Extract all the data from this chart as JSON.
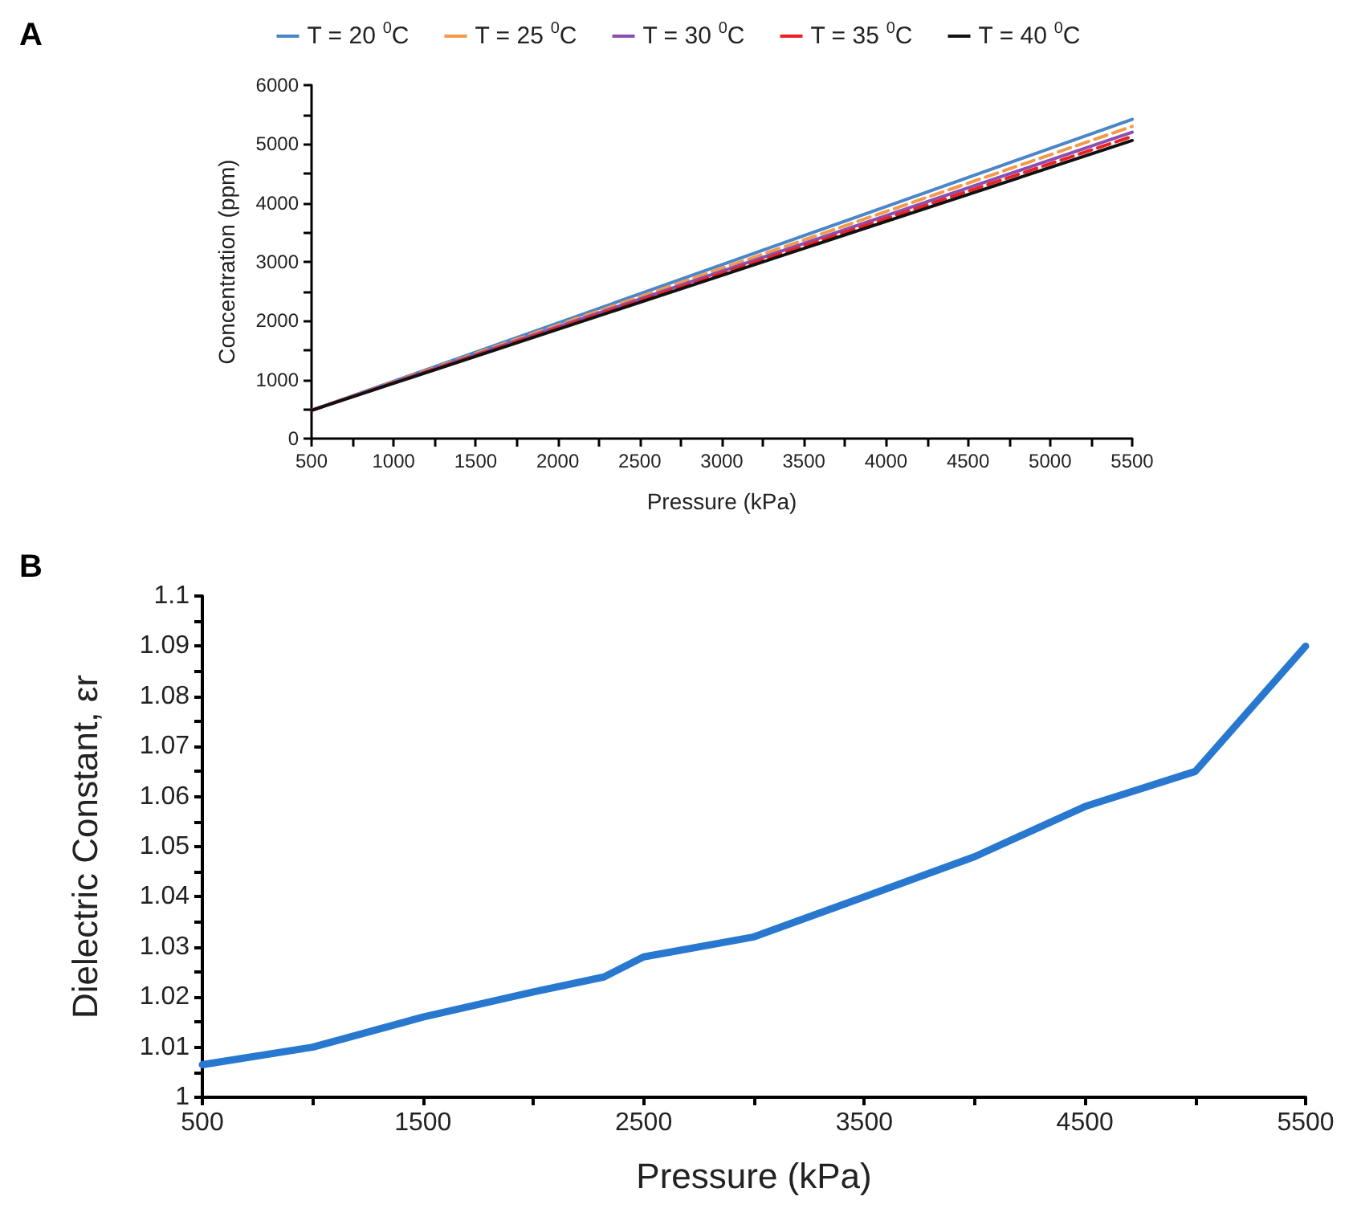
{
  "chart_data": [
    {
      "type": "line",
      "annotations": [
        "A"
      ],
      "xlabel": "Pressure (kPa)",
      "ylabel": "Concentration (ppm)",
      "xlim": [
        500,
        5500
      ],
      "ylim": [
        0,
        6000
      ],
      "xticks": [
        500,
        {
          "value": 750,
          "label": null
        },
        1000,
        {
          "value": 1250,
          "label": null
        },
        1500,
        {
          "value": 1750,
          "label": null
        },
        2000,
        {
          "value": 2250,
          "label": null
        },
        2500,
        {
          "value": 2750,
          "label": null
        },
        3000,
        {
          "value": 3250,
          "label": null
        },
        3500,
        {
          "value": 3750,
          "label": null
        },
        4000,
        {
          "value": 4250,
          "label": null
        },
        4500,
        {
          "value": 4750,
          "label": null
        },
        5000,
        {
          "value": 5250,
          "label": null
        },
        5500
      ],
      "yticks": [
        0,
        {
          "value": 500,
          "label": null
        },
        1000,
        {
          "value": 1500,
          "label": null
        },
        2000,
        {
          "value": 2500,
          "label": null
        },
        3000,
        {
          "value": 3500,
          "label": null
        },
        4000,
        {
          "value": 4500,
          "label": null
        },
        5000,
        {
          "value": 5500,
          "label": null
        },
        6000
      ],
      "x": [
        500,
        5500
      ],
      "grid": false,
      "legend": "top",
      "marker": "none",
      "series": [
        {
          "name": "T = 20 $^{0}$C",
          "color": "#4a86c8",
          "values": [
            480,
            5420
          ],
          "line_style": "solid"
        },
        {
          "name": "T = 25 $^{0}$C",
          "color": "#f39a4a",
          "values": [
            480,
            5300
          ],
          "line_style": "dashed"
        },
        {
          "name": "T = 30 $^{0}$C",
          "color": "#8a4fb0",
          "values": [
            480,
            5200
          ],
          "line_style": "solid"
        },
        {
          "name": "T = 35 $^{0}$C",
          "color": "#ee2020",
          "values": [
            480,
            5130
          ],
          "line_style": "dashed"
        },
        {
          "name": "T = 40 $^{0}$C",
          "color": "#111111",
          "values": [
            480,
            5060
          ],
          "line_style": "solid"
        }
      ]
    },
    {
      "type": "line",
      "annotations": [
        "B"
      ],
      "xlabel": "Pressure (kPa)",
      "ylabel": "Dielectric Constant, εr",
      "xlim": [
        500,
        5500
      ],
      "ylim": [
        1,
        1.1
      ],
      "xticks": [
        500,
        {
          "value": 1000,
          "label": null
        },
        1500,
        {
          "value": 2000,
          "label": null
        },
        2500,
        {
          "value": 3000,
          "label": null
        },
        3500,
        {
          "value": 4000,
          "label": null
        },
        4500,
        {
          "value": 5000,
          "label": null
        },
        5500
      ],
      "yticks": [
        1,
        {
          "value": 1.005,
          "label": null
        },
        1.01,
        {
          "value": 1.015,
          "label": null
        },
        1.02,
        {
          "value": 1.025,
          "label": null
        },
        1.03,
        {
          "value": 1.035,
          "label": null
        },
        1.04,
        {
          "value": 1.045,
          "label": null
        },
        1.05,
        {
          "value": 1.055,
          "label": null
        },
        1.06,
        {
          "value": 1.065,
          "label": null
        },
        1.07,
        {
          "value": 1.075,
          "label": null
        },
        1.08,
        {
          "value": 1.085,
          "label": null
        },
        1.09,
        {
          "value": 1.095,
          "label": null
        },
        1.1
      ],
      "x": [
        500,
        1000,
        1500,
        2000,
        2320,
        2500,
        3000,
        3500,
        4000,
        4500,
        5000,
        5500
      ],
      "grid": false,
      "marker": "none",
      "series": [
        {
          "color": "#2878d0",
          "values": [
            1.0065,
            1.01,
            1.016,
            1.021,
            1.024,
            1.028,
            1.032,
            1.04,
            1.048,
            1.058,
            1.065,
            1.09
          ],
          "line_style": "solid"
        }
      ]
    }
  ]
}
